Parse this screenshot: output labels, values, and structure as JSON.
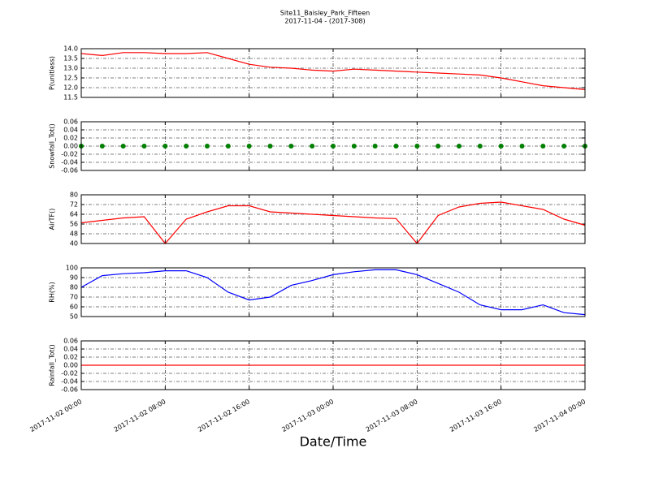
{
  "title": "Site11_Baisley_Park_Fifteen",
  "subtitle": "2017-11-04 - (2017-308)",
  "xlabel": "Date/Time",
  "chart_data": [
    {
      "type": "line",
      "ylabel": "P(unitless)",
      "color": "#ff0000",
      "x": [
        "2017-11-02 00:00",
        "2017-11-02 02:00",
        "2017-11-02 04:00",
        "2017-11-02 06:00",
        "2017-11-02 08:00",
        "2017-11-02 10:00",
        "2017-11-02 12:00",
        "2017-11-02 14:00",
        "2017-11-02 16:00",
        "2017-11-02 18:00",
        "2017-11-02 20:00",
        "2017-11-02 22:00",
        "2017-11-03 00:00",
        "2017-11-03 02:00",
        "2017-11-03 04:00",
        "2017-11-03 06:00",
        "2017-11-03 08:00",
        "2017-11-03 10:00",
        "2017-11-03 12:00",
        "2017-11-03 14:00",
        "2017-11-03 16:00",
        "2017-11-03 18:00",
        "2017-11-03 20:00",
        "2017-11-03 22:00",
        "2017-11-04 00:00"
      ],
      "values": [
        13.75,
        13.65,
        13.8,
        13.8,
        13.75,
        13.75,
        13.8,
        13.5,
        13.2,
        13.05,
        13.0,
        12.9,
        12.85,
        12.95,
        12.9,
        12.85,
        12.8,
        12.75,
        12.7,
        12.65,
        12.5,
        12.3,
        12.1,
        12.0,
        11.9
      ],
      "xlim": [
        "2017-11-02 00:00",
        "2017-11-04 00:00"
      ],
      "ylim": [
        11.5,
        14.0
      ],
      "yticks": [
        11.5,
        {
          "value": 12,
          "label": "12.0"
        },
        12.5,
        {
          "value": 13,
          "label": "13.0"
        },
        13.5,
        {
          "value": 14,
          "label": "14.0"
        }
      ],
      "grid": true
    },
    {
      "type": "scatter",
      "ylabel": "Snowfall_Tot()",
      "color": "#008000",
      "x": [
        "2017-11-02 00:00",
        "2017-11-02 02:00",
        "2017-11-02 04:00",
        "2017-11-02 06:00",
        "2017-11-02 08:00",
        "2017-11-02 10:00",
        "2017-11-02 12:00",
        "2017-11-02 14:00",
        "2017-11-02 16:00",
        "2017-11-02 18:00",
        "2017-11-02 20:00",
        "2017-11-02 22:00",
        "2017-11-03 00:00",
        "2017-11-03 02:00",
        "2017-11-03 04:00",
        "2017-11-03 06:00",
        "2017-11-03 08:00",
        "2017-11-03 10:00",
        "2017-11-03 12:00",
        "2017-11-03 14:00",
        "2017-11-03 16:00",
        "2017-11-03 18:00",
        "2017-11-03 20:00",
        "2017-11-03 22:00",
        "2017-11-04 00:00"
      ],
      "values": [
        0,
        0,
        0,
        0,
        0,
        0,
        0,
        0,
        0,
        0,
        0,
        0,
        0,
        0,
        0,
        0,
        0,
        0,
        0,
        0,
        0,
        0,
        0,
        0,
        0
      ],
      "xlim": [
        "2017-11-02 00:00",
        "2017-11-04 00:00"
      ],
      "ylim": [
        -0.06,
        0.06
      ],
      "yticks": [
        {
          "value": -0.06,
          "label": "-0.06"
        },
        {
          "value": -0.04,
          "label": "-0.04"
        },
        {
          "value": -0.02,
          "label": "-0.02"
        },
        {
          "value": 0,
          "label": "0.00"
        },
        {
          "value": 0.02,
          "label": "0.02"
        },
        {
          "value": 0.04,
          "label": "0.04"
        },
        {
          "value": 0.06,
          "label": "0.06"
        }
      ],
      "grid": true
    },
    {
      "type": "line",
      "ylabel": "AirTF()",
      "color": "#ff0000",
      "x": [
        "2017-11-02 00:00",
        "2017-11-02 02:00",
        "2017-11-02 04:00",
        "2017-11-02 06:00",
        "2017-11-02 08:00",
        "2017-11-02 10:00",
        "2017-11-02 12:00",
        "2017-11-02 14:00",
        "2017-11-02 16:00",
        "2017-11-02 18:00",
        "2017-11-02 20:00",
        "2017-11-02 22:00",
        "2017-11-03 00:00",
        "2017-11-03 02:00",
        "2017-11-03 04:00",
        "2017-11-03 06:00",
        "2017-11-03 08:00",
        "2017-11-03 10:00",
        "2017-11-03 12:00",
        "2017-11-03 14:00",
        "2017-11-03 16:00",
        "2017-11-03 18:00",
        "2017-11-03 20:00",
        "2017-11-03 22:00",
        "2017-11-04 00:00"
      ],
      "values": [
        57,
        59,
        61,
        62,
        40,
        60,
        66,
        71,
        71,
        66,
        65,
        64,
        63,
        62,
        61,
        60.5,
        40,
        63,
        70,
        73,
        74,
        71,
        68,
        60,
        55
      ],
      "xlim": [
        "2017-11-02 00:00",
        "2017-11-04 00:00"
      ],
      "ylim": [
        40,
        80
      ],
      "yticks": [
        40,
        48,
        56,
        64,
        72,
        80
      ],
      "grid": true
    },
    {
      "type": "line",
      "ylabel": "RH(%)",
      "color": "#0000ff",
      "x": [
        "2017-11-02 00:00",
        "2017-11-02 02:00",
        "2017-11-02 04:00",
        "2017-11-02 06:00",
        "2017-11-02 08:00",
        "2017-11-02 10:00",
        "2017-11-02 12:00",
        "2017-11-02 14:00",
        "2017-11-02 16:00",
        "2017-11-02 18:00",
        "2017-11-02 20:00",
        "2017-11-02 22:00",
        "2017-11-03 00:00",
        "2017-11-03 02:00",
        "2017-11-03 04:00",
        "2017-11-03 06:00",
        "2017-11-03 08:00",
        "2017-11-03 10:00",
        "2017-11-03 12:00",
        "2017-11-03 14:00",
        "2017-11-03 16:00",
        "2017-11-03 18:00",
        "2017-11-03 20:00",
        "2017-11-03 22:00",
        "2017-11-04 00:00"
      ],
      "values": [
        80,
        92,
        94,
        95,
        97,
        97,
        90,
        75,
        67,
        70,
        82,
        87,
        93,
        96,
        98,
        98,
        93,
        84,
        75,
        62,
        57,
        57,
        62,
        54,
        52
      ],
      "xlim": [
        "2017-11-02 00:00",
        "2017-11-04 00:00"
      ],
      "ylim": [
        50,
        100
      ],
      "yticks": [
        50,
        60,
        70,
        80,
        90,
        100
      ],
      "grid": true
    },
    {
      "type": "line",
      "ylabel": "Rainfall_Tot()",
      "color": "#ff0000",
      "x": [
        "2017-11-02 00:00",
        "2017-11-02 02:00",
        "2017-11-02 04:00",
        "2017-11-02 06:00",
        "2017-11-02 08:00",
        "2017-11-02 10:00",
        "2017-11-02 12:00",
        "2017-11-02 14:00",
        "2017-11-02 16:00",
        "2017-11-02 18:00",
        "2017-11-02 20:00",
        "2017-11-02 22:00",
        "2017-11-03 00:00",
        "2017-11-03 02:00",
        "2017-11-03 04:00",
        "2017-11-03 06:00",
        "2017-11-03 08:00",
        "2017-11-03 10:00",
        "2017-11-03 12:00",
        "2017-11-03 14:00",
        "2017-11-03 16:00",
        "2017-11-03 18:00",
        "2017-11-03 20:00",
        "2017-11-03 22:00",
        "2017-11-04 00:00"
      ],
      "values": [
        0,
        0,
        0,
        0,
        0,
        0,
        0,
        0,
        0,
        0,
        0,
        0,
        0,
        0,
        0,
        0,
        0,
        0,
        0,
        0,
        0,
        0,
        0,
        0,
        0
      ],
      "xlim": [
        "2017-11-02 00:00",
        "2017-11-04 00:00"
      ],
      "ylim": [
        -0.06,
        0.06
      ],
      "yticks": [
        {
          "value": -0.06,
          "label": "-0.06"
        },
        {
          "value": -0.04,
          "label": "-0.04"
        },
        {
          "value": -0.02,
          "label": "-0.02"
        },
        {
          "value": 0,
          "label": "0.00"
        },
        {
          "value": 0.02,
          "label": "0.02"
        },
        {
          "value": 0.04,
          "label": "0.04"
        },
        {
          "value": 0.06,
          "label": "0.06"
        }
      ],
      "xticks": [
        "2017-11-02 00:00",
        "2017-11-02 08:00",
        "2017-11-02 16:00",
        "2017-11-03 00:00",
        "2017-11-03 08:00",
        "2017-11-03 16:00",
        "2017-11-04 00:00"
      ],
      "grid": true
    }
  ]
}
